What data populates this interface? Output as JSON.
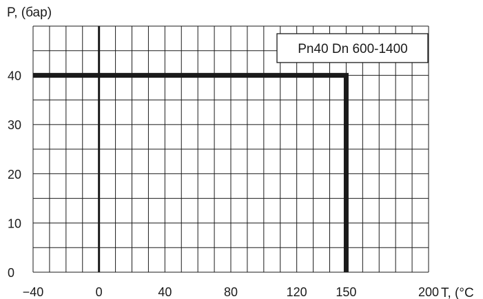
{
  "chart_data": {
    "type": "line",
    "title": "",
    "xlabel": "T, (°C",
    "ylabel": "P, (бар)",
    "x_ticks": [
      -40,
      0,
      40,
      80,
      120,
      150,
      200
    ],
    "y_ticks": [
      0,
      10,
      20,
      30,
      40
    ],
    "xlim": [
      -40,
      200
    ],
    "ylim": [
      0,
      50
    ],
    "grid": true,
    "legend_position": "top-right",
    "series": [
      {
        "name": "Pn40 Dn 600-1400",
        "points": [
          [
            -40,
            40
          ],
          [
            150,
            40
          ],
          [
            150,
            0
          ]
        ],
        "color": "#1a1a1a"
      }
    ],
    "zero_line_x": 0
  }
}
